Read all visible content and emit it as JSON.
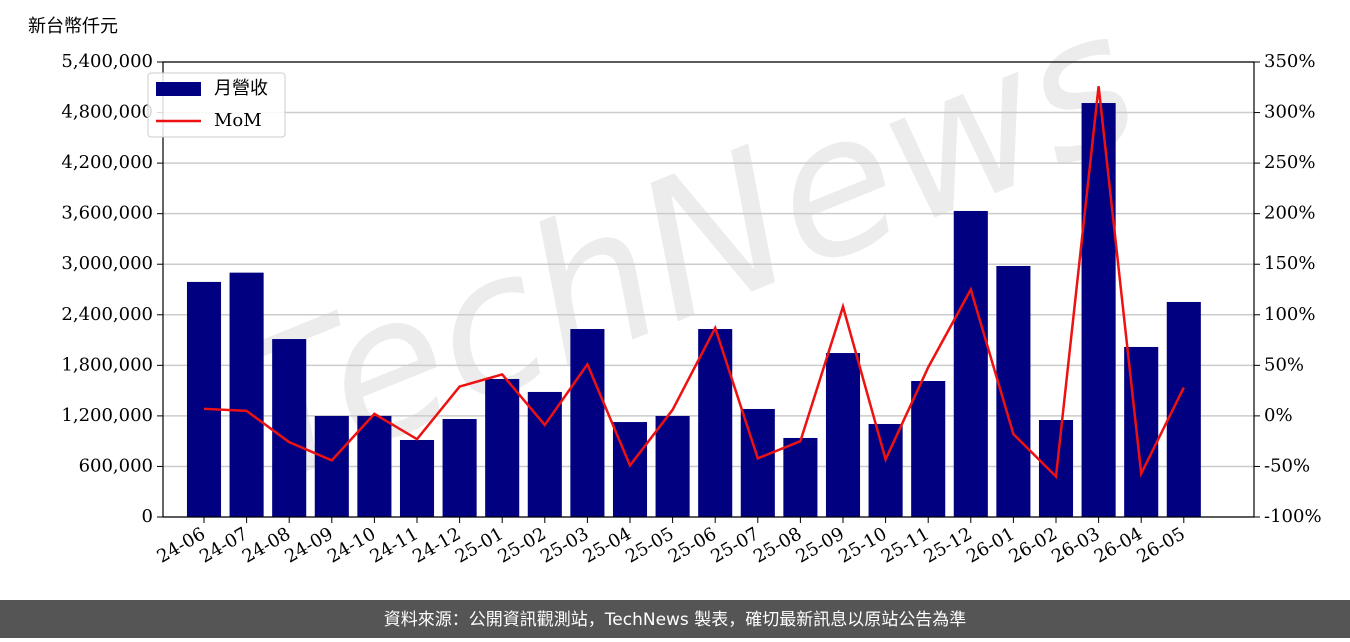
{
  "chart_data": {
    "type": "bar",
    "y_label": "新台幣仟元",
    "watermark": "TechNews",
    "source": "資料來源：公開資訊觀測站，TechNews 製表，確切最新訊息以原站公告為準",
    "categories": [
      "24-06",
      "24-07",
      "24-08",
      "24-09",
      "24-10",
      "24-11",
      "24-12",
      "25-01",
      "25-02",
      "25-03",
      "25-04",
      "25-05",
      "25-06",
      "25-07",
      "25-08",
      "25-09",
      "25-10",
      "25-11",
      "25-12",
      "26-01",
      "26-02",
      "26-03",
      "26-04",
      "26-05"
    ],
    "series": [
      {
        "name": "月營收",
        "type": "bar",
        "color": "#000080",
        "values": [
          2790000,
          2900000,
          2112000,
          1199000,
          1200000,
          914000,
          1163000,
          1638000,
          1484000,
          2231000,
          1127000,
          1199000,
          2231000,
          1282000,
          938000,
          1946000,
          1104000,
          1614000,
          3632000,
          2979000,
          1151000,
          4913000,
          2018000,
          2552000
        ]
      },
      {
        "name": "MoM",
        "type": "line",
        "axis": "y2",
        "color": "#ee1111",
        "values": [
          7,
          5,
          -26,
          -44,
          2,
          -23,
          29,
          41,
          -9,
          51,
          -49,
          6,
          87,
          -42,
          -25,
          108,
          -43,
          48,
          125,
          -18,
          -60,
          326,
          -57,
          28
        ]
      }
    ],
    "ylim": [
      0,
      5400000
    ],
    "yticks": [
      0,
      {
        "value": 600000,
        "label": "600,000"
      },
      {
        "value": 1200000,
        "label": "1,200,000"
      },
      {
        "value": 1800000,
        "label": "1,800,000"
      },
      {
        "value": 2400000,
        "label": "2,400,000"
      },
      {
        "value": 3000000,
        "label": "3,000,000"
      },
      {
        "value": 3600000,
        "label": "3,600,000"
      },
      {
        "value": 4200000,
        "label": "4,200,000"
      },
      {
        "value": 4800000,
        "label": "4,800,000"
      },
      {
        "value": 5400000,
        "label": "5,400,000"
      }
    ],
    "y2lim": [
      -100,
      350
    ],
    "y2ticks": [
      {
        "value": -100,
        "label": "-100%"
      },
      {
        "value": -50,
        "label": "-50%"
      },
      {
        "value": 0,
        "label": "0%"
      },
      {
        "value": 50,
        "label": "50%"
      },
      {
        "value": 100,
        "label": "100%"
      },
      {
        "value": 150,
        "label": "150%"
      },
      {
        "value": 200,
        "label": "200%"
      },
      {
        "value": 250,
        "label": "250%"
      },
      {
        "value": 300,
        "label": "300%"
      },
      {
        "value": 350,
        "label": "350%"
      }
    ],
    "grid": true,
    "legend": "upper left"
  }
}
